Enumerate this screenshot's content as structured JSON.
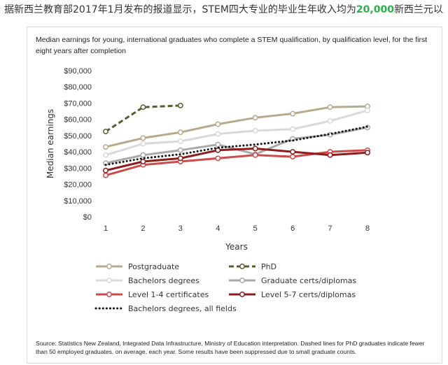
{
  "headline": {
    "before": "据新西兰教育部2017年1月发布的报道显示，STEM四大专业的毕业生年收入均为",
    "highlight": "20,000",
    "after": "新西兰元以上。"
  },
  "source_note": "Source: Statistics New Zealand, Integrated Data Infrastructure, Ministry of Education interpretation.  Dashed lines for PhD graduates indicate fewer than 50 employed graduates, on average, each year.  Some results have been suppressed due to small graduate counts.",
  "chart_data": {
    "type": "line",
    "title": "Median earnings for young, international graduates who complete a STEM qualification, by qualification level, for the first eight years after completion",
    "xlabel": "Years",
    "ylabel": "Median earnings",
    "x": [
      1,
      2,
      3,
      4,
      5,
      6,
      7,
      8
    ],
    "y_ticks": [
      "$0",
      "$10,000",
      "$20,000",
      "$30,000",
      "$40,000",
      "$50,000",
      "$60,000",
      "$70,000",
      "$80,000",
      "$90,000"
    ],
    "ylim": [
      0,
      90000
    ],
    "grid": false,
    "legend_position": "bottom",
    "series": [
      {
        "name": "Postgraduate",
        "color": "#b9a98c",
        "style": "solid-marker",
        "values": [
          43000,
          48500,
          52000,
          57000,
          61000,
          63500,
          67500,
          68000
        ]
      },
      {
        "name": "PhD",
        "color": "#5a5a32",
        "style": "dashed-marker",
        "values": [
          52500,
          67500,
          68500,
          null,
          null,
          null,
          null,
          null
        ]
      },
      {
        "name": "Bachelors degrees",
        "color": "#d9d9d9",
        "style": "solid-marker",
        "values": [
          38000,
          45000,
          46500,
          51000,
          53000,
          54000,
          59000,
          65500
        ]
      },
      {
        "name": "Graduate certs/diplomas",
        "color": "#a8a8a8",
        "style": "solid-marker",
        "values": [
          33000,
          38000,
          41000,
          44500,
          38500,
          48000,
          50500,
          55000
        ]
      },
      {
        "name": "Level 1-4 certificates",
        "color": "#cc4a4a",
        "style": "solid-marker",
        "values": [
          25500,
          32000,
          34000,
          36000,
          38000,
          37000,
          40000,
          41000
        ]
      },
      {
        "name": "Level 5-7 certs/diplomas",
        "color": "#8e1c1c",
        "style": "solid-marker",
        "values": [
          28500,
          34000,
          36000,
          41000,
          42000,
          40000,
          38000,
          39500
        ]
      },
      {
        "name": "Bachelors degrees, all fields",
        "color": "#111111",
        "style": "dotted",
        "values": [
          32000,
          36000,
          38500,
          42500,
          44500,
          47000,
          51000,
          55500
        ]
      }
    ]
  }
}
